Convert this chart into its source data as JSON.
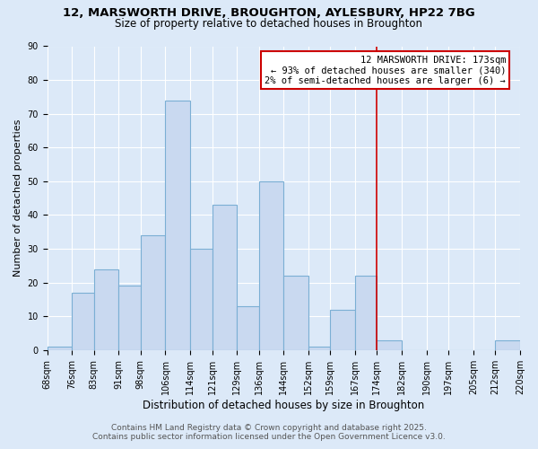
{
  "title_line1": "12, MARSWORTH DRIVE, BROUGHTON, AYLESBURY, HP22 7BG",
  "title_line2": "Size of property relative to detached houses in Broughton",
  "xlabel": "Distribution of detached houses by size in Broughton",
  "ylabel": "Number of detached properties",
  "bar_edges": [
    68,
    76,
    83,
    91,
    98,
    106,
    114,
    121,
    129,
    136,
    144,
    152,
    159,
    167,
    174,
    182,
    190,
    197,
    205,
    212,
    220
  ],
  "bar_heights": [
    1,
    17,
    24,
    19,
    34,
    74,
    30,
    43,
    13,
    50,
    22,
    1,
    12,
    22,
    3,
    0,
    0,
    0,
    0,
    3
  ],
  "tick_labels": [
    "68sqm",
    "76sqm",
    "83sqm",
    "91sqm",
    "98sqm",
    "106sqm",
    "114sqm",
    "121sqm",
    "129sqm",
    "136sqm",
    "144sqm",
    "152sqm",
    "159sqm",
    "167sqm",
    "174sqm",
    "182sqm",
    "190sqm",
    "197sqm",
    "205sqm",
    "212sqm",
    "220sqm"
  ],
  "bar_color": "#c9d9f0",
  "bar_edgecolor": "#7bafd4",
  "vline_x": 174,
  "vline_color": "#cc0000",
  "annotation_title": "12 MARSWORTH DRIVE: 173sqm",
  "annotation_line1": "← 93% of detached houses are smaller (340)",
  "annotation_line2": "2% of semi-detached houses are larger (6) →",
  "annotation_box_color": "#cc0000",
  "ylim": [
    0,
    90
  ],
  "yticks": [
    0,
    10,
    20,
    30,
    40,
    50,
    60,
    70,
    80,
    90
  ],
  "bg_color": "#dce9f8",
  "plot_bg_color": "#dce9f8",
  "footer_line1": "Contains HM Land Registry data © Crown copyright and database right 2025.",
  "footer_line2": "Contains public sector information licensed under the Open Government Licence v3.0.",
  "grid_color": "#ffffff",
  "title_fontsize": 9.5,
  "subtitle_fontsize": 8.5,
  "tick_fontsize": 7,
  "ylabel_fontsize": 8,
  "xlabel_fontsize": 8.5,
  "annot_fontsize": 7.5,
  "footer_fontsize": 6.5
}
